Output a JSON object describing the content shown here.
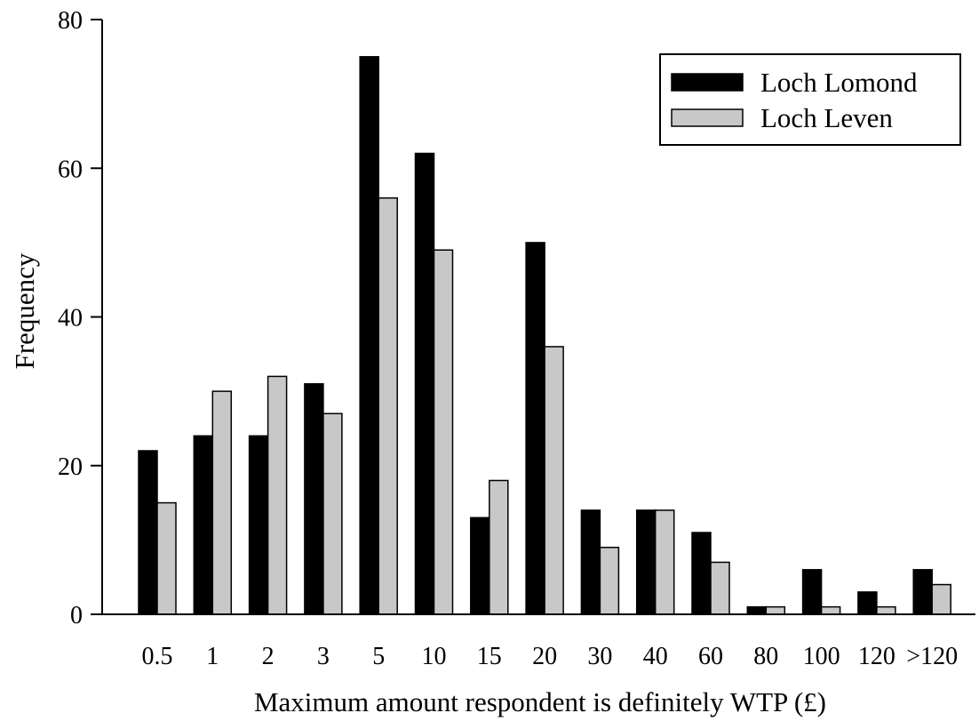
{
  "colors": {
    "series_1": "#000000",
    "series_2": "#c8c8c8",
    "axis": "#000000",
    "background": "#ffffff"
  },
  "chart_data": {
    "type": "bar",
    "title": "",
    "xlabel": "Maximum amount respondent is definitely WTP (£)",
    "ylabel": "Frequency",
    "ylim": [
      0,
      80
    ],
    "yticks": [
      "0",
      "20",
      "40",
      "60",
      "80"
    ],
    "grid": false,
    "legend_position": "top-right",
    "categories": [
      "0.5",
      "1",
      "2",
      "3",
      "5",
      "10",
      "15",
      "20",
      "30",
      "40",
      "60",
      "80",
      "100",
      "120",
      ">120"
    ],
    "series": [
      {
        "name": "Loch Lomond",
        "values": [
          22,
          24,
          24,
          31,
          75,
          62,
          13,
          50,
          14,
          14,
          11,
          1,
          6,
          3,
          6
        ]
      },
      {
        "name": "Loch Leven",
        "values": [
          15,
          30,
          32,
          27,
          56,
          49,
          18,
          36,
          9,
          14,
          7,
          1,
          1,
          1,
          4
        ]
      }
    ]
  }
}
